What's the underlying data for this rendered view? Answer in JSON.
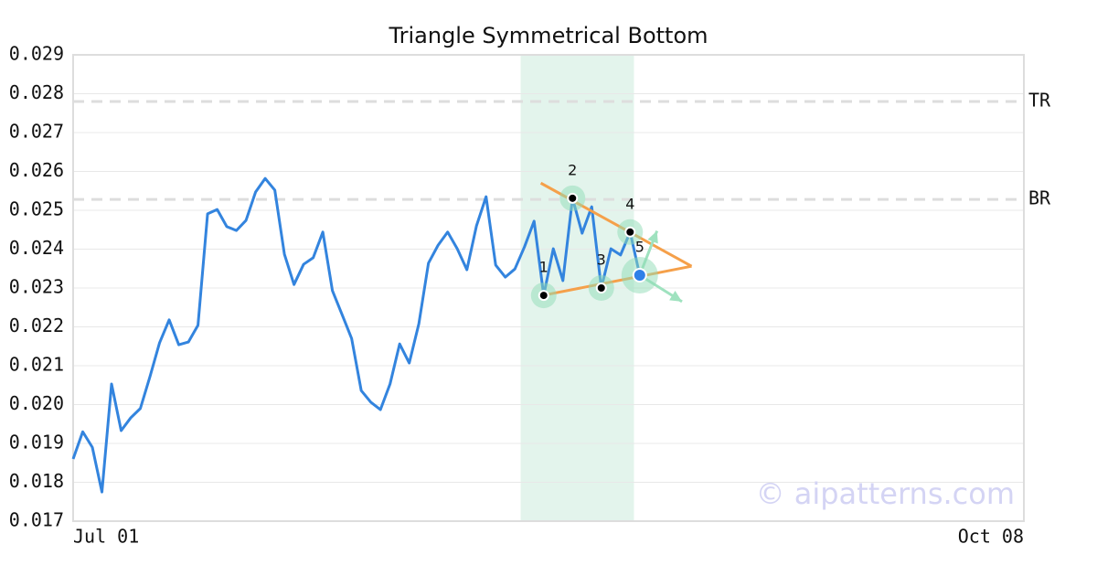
{
  "chart_data": {
    "type": "line",
    "title": "Triangle Symmetrical Bottom",
    "xlim": [
      0,
      99
    ],
    "xticks": [
      {
        "value": 0,
        "label": "Jul 01"
      },
      {
        "value": 99,
        "label": "Oct 08"
      }
    ],
    "ylim": [
      0.017,
      0.029
    ],
    "yticks": [
      0.017,
      0.018,
      0.019,
      {
        "value": 0.02,
        "label": "0.020"
      },
      0.021,
      0.022,
      0.023,
      0.024,
      0.025,
      0.026,
      0.027,
      0.028,
      0.029
    ],
    "grid": true,
    "series": [
      {
        "color": "#3384de",
        "x": [
          0,
          1,
          2,
          3,
          4,
          5,
          6,
          7,
          8,
          9,
          10,
          11,
          12,
          13,
          14,
          15,
          16,
          17,
          18,
          19,
          20,
          21,
          22,
          23,
          24,
          25,
          26,
          27,
          28,
          29,
          30,
          31,
          32,
          33,
          34,
          35,
          36,
          37,
          38,
          39,
          40,
          41,
          42,
          43,
          44,
          45,
          46,
          47,
          48,
          49,
          50,
          51,
          52,
          53,
          54,
          55,
          56,
          57,
          58,
          59
        ],
        "values": [
          0.0186,
          0.0193,
          0.0189,
          0.01775,
          0.02053,
          0.01933,
          0.01966,
          0.0199,
          0.02072,
          0.02159,
          0.02218,
          0.02154,
          0.02161,
          0.02204,
          0.02491,
          0.02502,
          0.02458,
          0.02448,
          0.02474,
          0.02547,
          0.02582,
          0.02552,
          0.02387,
          0.02309,
          0.02361,
          0.02378,
          0.02444,
          0.02293,
          0.02232,
          0.0217,
          0.02036,
          0.02006,
          0.01987,
          0.02053,
          0.02156,
          0.02107,
          0.02208,
          0.02364,
          0.0241,
          0.02444,
          0.02401,
          0.02347,
          0.0246,
          0.02535,
          0.02359,
          0.02328,
          0.02349,
          0.02406,
          0.02472,
          0.02281,
          0.02401,
          0.02319,
          0.02531,
          0.02441,
          0.02509,
          0.023,
          0.02401,
          0.02385,
          0.02444,
          0.02333
        ]
      }
    ],
    "highlight": {
      "x": [
        46.6,
        58.4
      ],
      "color": "#e3f4ec"
    },
    "levels": [
      {
        "label": "TR",
        "value": 0.0278
      },
      {
        "label": "BR",
        "value": 0.02528
      }
    ],
    "triangle": {
      "color": "#f5a04a",
      "upper": {
        "x": [
          48.7,
          64.4
        ],
        "y": [
          0.0257,
          0.02356
        ]
      },
      "lower": {
        "x": [
          48.9,
          64.4
        ],
        "y": [
          0.02281,
          0.02356
        ]
      }
    },
    "points": [
      {
        "label": "1",
        "x": 49,
        "y": 0.02281
      },
      {
        "label": "2",
        "x": 52,
        "y": 0.02531
      },
      {
        "label": "3",
        "x": 55,
        "y": 0.023
      },
      {
        "label": "4",
        "x": 58,
        "y": 0.02444
      },
      {
        "label": "5",
        "x": 59,
        "y": 0.02333
      }
    ],
    "projections": [
      {
        "x": [
          59,
          60.8
        ],
        "y": [
          0.02333,
          0.02447
        ]
      },
      {
        "x": [
          59,
          63.4
        ],
        "y": [
          0.02333,
          0.02265
        ]
      }
    ],
    "watermark": "© aipatterns.com"
  }
}
